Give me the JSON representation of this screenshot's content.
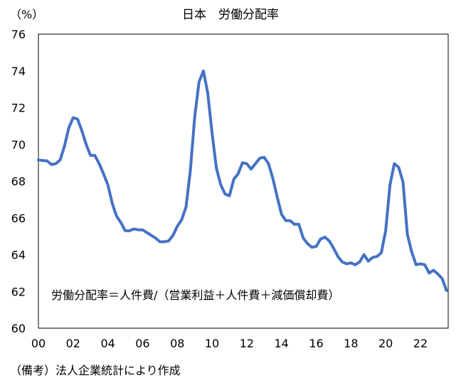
{
  "chart_data": {
    "type": "line",
    "title": "日本　労働分配率",
    "ylabel": "（%）",
    "xlabel": "",
    "ylim": [
      60,
      76
    ],
    "xlim": [
      2000,
      2023.6
    ],
    "yticks": [
      60,
      62,
      64,
      66,
      68,
      70,
      72,
      74,
      76
    ],
    "xticks": [
      {
        "value": 2000,
        "label": "00"
      },
      {
        "value": 2002,
        "label": "02"
      },
      {
        "value": 2004,
        "label": "04"
      },
      {
        "value": 2006,
        "label": "06"
      },
      {
        "value": 2008,
        "label": "08"
      },
      {
        "value": 2010,
        "label": "10"
      },
      {
        "value": 2012,
        "label": "12"
      },
      {
        "value": 2014,
        "label": "14"
      },
      {
        "value": 2016,
        "label": "16"
      },
      {
        "value": 2018,
        "label": "18"
      },
      {
        "value": 2020,
        "label": "20"
      },
      {
        "value": 2022,
        "label": "22"
      }
    ],
    "grid": false,
    "annotation": "労働分配率＝人件費/（営業利益＋人件費＋減価償却費）",
    "line_color": "#4472c4",
    "series": [
      {
        "x": [
          2000.0,
          2000.25,
          2000.5,
          2000.75,
          2001.0,
          2001.25,
          2001.5,
          2001.75,
          2002.0,
          2002.25,
          2002.5,
          2002.75,
          2003.0,
          2003.25,
          2003.5,
          2003.75,
          2004.0,
          2004.25,
          2004.5,
          2004.75,
          2005.0,
          2005.25,
          2005.5,
          2005.75,
          2006.0,
          2006.25,
          2006.5,
          2006.75,
          2007.0,
          2007.25,
          2007.5,
          2007.75,
          2008.0,
          2008.25,
          2008.5,
          2008.75,
          2009.0,
          2009.25,
          2009.5,
          2009.75,
          2010.0,
          2010.25,
          2010.5,
          2010.75,
          2011.0,
          2011.25,
          2011.5,
          2011.75,
          2012.0,
          2012.25,
          2012.5,
          2012.75,
          2013.0,
          2013.25,
          2013.5,
          2013.75,
          2014.0,
          2014.25,
          2014.5,
          2014.75,
          2015.0,
          2015.25,
          2015.5,
          2015.75,
          2016.0,
          2016.25,
          2016.5,
          2016.75,
          2017.0,
          2017.25,
          2017.5,
          2017.75,
          2018.0,
          2018.25,
          2018.5,
          2018.75,
          2019.0,
          2019.25,
          2019.5,
          2019.75,
          2020.0,
          2020.25,
          2020.5,
          2020.75,
          2021.0,
          2021.25,
          2021.5,
          2021.75,
          2022.0,
          2022.25,
          2022.5,
          2022.75,
          2023.0,
          2023.25,
          2023.5
        ],
        "values": [
          69.15,
          69.12,
          69.1,
          68.9,
          68.95,
          69.15,
          69.9,
          70.9,
          71.45,
          71.38,
          70.75,
          70.0,
          69.4,
          69.4,
          68.95,
          68.4,
          67.8,
          66.8,
          66.1,
          65.75,
          65.3,
          65.3,
          65.4,
          65.35,
          65.35,
          65.2,
          65.05,
          64.9,
          64.7,
          64.7,
          64.75,
          65.05,
          65.55,
          65.9,
          66.6,
          68.6,
          71.5,
          73.4,
          74.0,
          72.8,
          70.6,
          68.7,
          67.8,
          67.3,
          67.2,
          68.1,
          68.4,
          69.0,
          68.95,
          68.65,
          68.95,
          69.25,
          69.3,
          68.95,
          68.15,
          67.15,
          66.2,
          65.85,
          65.85,
          65.65,
          65.65,
          64.9,
          64.6,
          64.4,
          64.45,
          64.85,
          64.95,
          64.75,
          64.35,
          63.9,
          63.6,
          63.5,
          63.55,
          63.45,
          63.6,
          64.0,
          63.65,
          63.85,
          63.9,
          64.1,
          65.3,
          67.8,
          68.95,
          68.75,
          67.95,
          65.1,
          64.15,
          63.45,
          63.5,
          63.45,
          63.0,
          63.15,
          62.95,
          62.7,
          62.05
        ]
      }
    ]
  },
  "source_note": "（備考）法人企業統計により作成"
}
